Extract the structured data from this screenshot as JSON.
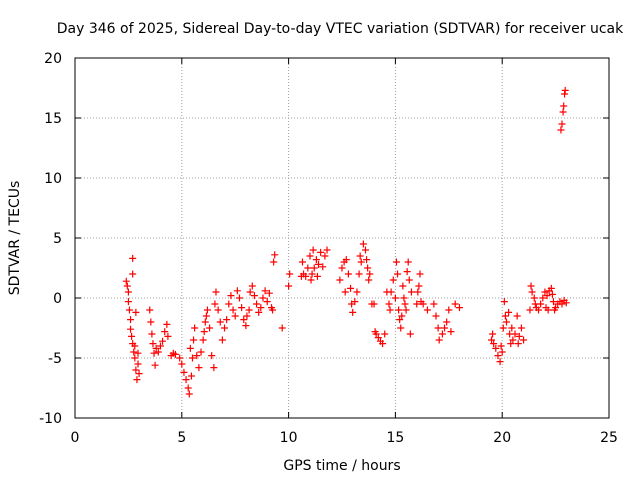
{
  "chart_data": {
    "type": "scatter",
    "title": "Day 346 of 2025, Sidereal Day-to-day VTEC variation (SDTVAR) for receiver ucak",
    "xlabel": "GPS time / hours",
    "ylabel": "SDTVAR / TECUs",
    "xlim": [
      0,
      25
    ],
    "ylim": [
      -10,
      20
    ],
    "xticks": [
      0,
      5,
      10,
      15,
      20,
      25
    ],
    "yticks": [
      -10,
      -5,
      0,
      5,
      10,
      15,
      20
    ],
    "grid": true,
    "marker": "plus",
    "color": "#ff0000",
    "series": [
      {
        "name": "SDTVAR",
        "points": [
          [
            2.4,
            1.4
          ],
          [
            2.45,
            1.0
          ],
          [
            2.5,
            0.5
          ],
          [
            2.5,
            -0.3
          ],
          [
            2.55,
            -1.0
          ],
          [
            2.6,
            -1.8
          ],
          [
            2.6,
            -2.6
          ],
          [
            2.65,
            -3.2
          ],
          [
            2.7,
            2.0
          ],
          [
            2.7,
            3.3
          ],
          [
            2.7,
            -3.8
          ],
          [
            2.75,
            -4.5
          ],
          [
            2.8,
            -5.0
          ],
          [
            2.8,
            -4.0
          ],
          [
            2.85,
            -6.0
          ],
          [
            2.9,
            -6.8
          ],
          [
            2.95,
            -5.5
          ],
          [
            3.0,
            -6.3
          ],
          [
            2.85,
            -1.2
          ],
          [
            2.95,
            -4.6
          ],
          [
            3.5,
            -1.0
          ],
          [
            3.55,
            -2.0
          ],
          [
            3.6,
            -3.0
          ],
          [
            3.65,
            -3.8
          ],
          [
            3.7,
            -4.6
          ],
          [
            3.75,
            -5.6
          ],
          [
            3.8,
            -4.2
          ],
          [
            3.9,
            -4.5
          ],
          [
            4.0,
            -4.0
          ],
          [
            4.1,
            -3.6
          ],
          [
            4.2,
            -2.8
          ],
          [
            4.3,
            -2.2
          ],
          [
            4.35,
            -3.2
          ],
          [
            4.5,
            -4.8
          ],
          [
            4.6,
            -4.6
          ],
          [
            4.7,
            -4.7
          ],
          [
            4.9,
            -5.0
          ],
          [
            5.0,
            -5.5
          ],
          [
            5.1,
            -6.2
          ],
          [
            5.2,
            -6.8
          ],
          [
            5.3,
            -7.5
          ],
          [
            5.35,
            -8.0
          ],
          [
            5.45,
            -6.5
          ],
          [
            5.5,
            -5.0
          ],
          [
            5.55,
            -3.5
          ],
          [
            5.6,
            -2.5
          ],
          [
            5.4,
            -4.2
          ],
          [
            5.7,
            -4.8
          ],
          [
            5.8,
            -5.8
          ],
          [
            5.9,
            -4.5
          ],
          [
            6.0,
            -3.5
          ],
          [
            6.05,
            -2.8
          ],
          [
            6.1,
            -2.0
          ],
          [
            6.15,
            -1.5
          ],
          [
            6.2,
            -1.0
          ],
          [
            6.3,
            -2.5
          ],
          [
            6.4,
            -4.8
          ],
          [
            6.5,
            -5.8
          ],
          [
            6.55,
            -0.5
          ],
          [
            6.6,
            0.5
          ],
          [
            6.7,
            -1.0
          ],
          [
            6.8,
            -2.0
          ],
          [
            6.9,
            -3.5
          ],
          [
            7.0,
            -2.5
          ],
          [
            7.1,
            -1.8
          ],
          [
            7.2,
            -0.5
          ],
          [
            7.3,
            0.2
          ],
          [
            7.4,
            -1.0
          ],
          [
            7.5,
            -1.5
          ],
          [
            7.6,
            0.6
          ],
          [
            7.7,
            0.0
          ],
          [
            7.8,
            -0.8
          ],
          [
            7.9,
            -1.8
          ],
          [
            8.0,
            -2.3
          ],
          [
            8.05,
            -1.5
          ],
          [
            8.15,
            -1.0
          ],
          [
            8.2,
            0.5
          ],
          [
            8.3,
            1.0
          ],
          [
            8.4,
            0.2
          ],
          [
            8.5,
            -0.5
          ],
          [
            8.6,
            -1.2
          ],
          [
            8.7,
            -0.8
          ],
          [
            8.8,
            0.0
          ],
          [
            8.9,
            0.6
          ],
          [
            9.0,
            -0.3
          ],
          [
            9.1,
            0.4
          ],
          [
            9.2,
            -0.8
          ],
          [
            9.25,
            -1.0
          ],
          [
            9.3,
            3.0
          ],
          [
            9.35,
            3.6
          ],
          [
            9.7,
            -2.5
          ],
          [
            10.0,
            1.0
          ],
          [
            10.05,
            2.0
          ],
          [
            10.6,
            1.8
          ],
          [
            10.65,
            3.0
          ],
          [
            10.7,
            2.0
          ],
          [
            10.8,
            1.8
          ],
          [
            10.9,
            2.5
          ],
          [
            11.0,
            3.5
          ],
          [
            11.05,
            1.5
          ],
          [
            11.1,
            2.0
          ],
          [
            11.15,
            4.0
          ],
          [
            11.2,
            2.5
          ],
          [
            11.3,
            3.2
          ],
          [
            11.35,
            1.8
          ],
          [
            11.4,
            2.8
          ],
          [
            11.5,
            3.8
          ],
          [
            11.6,
            2.6
          ],
          [
            11.7,
            3.5
          ],
          [
            11.8,
            4.0
          ],
          [
            12.4,
            1.5
          ],
          [
            12.5,
            2.5
          ],
          [
            12.6,
            3.0
          ],
          [
            12.65,
            0.5
          ],
          [
            12.7,
            3.2
          ],
          [
            12.8,
            2.0
          ],
          [
            12.9,
            0.8
          ],
          [
            12.95,
            -0.5
          ],
          [
            13.0,
            -1.2
          ],
          [
            13.1,
            -0.3
          ],
          [
            13.2,
            0.5
          ],
          [
            13.3,
            2.0
          ],
          [
            13.35,
            3.5
          ],
          [
            13.4,
            3.0
          ],
          [
            13.5,
            4.5
          ],
          [
            13.6,
            4.0
          ],
          [
            13.65,
            3.2
          ],
          [
            13.7,
            2.5
          ],
          [
            13.75,
            1.5
          ],
          [
            13.8,
            2.0
          ],
          [
            13.9,
            -0.5
          ],
          [
            14.0,
            -0.5
          ],
          [
            14.05,
            -2.8
          ],
          [
            14.1,
            -3.0
          ],
          [
            14.2,
            -3.3
          ],
          [
            14.3,
            -3.6
          ],
          [
            14.4,
            -3.8
          ],
          [
            14.5,
            -3.0
          ],
          [
            14.6,
            0.5
          ],
          [
            14.7,
            -0.5
          ],
          [
            14.75,
            -1.0
          ],
          [
            14.8,
            0.5
          ],
          [
            14.9,
            1.5
          ],
          [
            15.0,
            0.0
          ],
          [
            15.05,
            3.0
          ],
          [
            15.1,
            2.0
          ],
          [
            15.15,
            -1.0
          ],
          [
            15.2,
            -1.8
          ],
          [
            15.25,
            -2.5
          ],
          [
            15.3,
            -1.5
          ],
          [
            15.35,
            1.0
          ],
          [
            15.4,
            0.0
          ],
          [
            15.45,
            -0.5
          ],
          [
            15.5,
            -1.0
          ],
          [
            15.55,
            2.2
          ],
          [
            15.6,
            3.0
          ],
          [
            15.65,
            1.5
          ],
          [
            15.7,
            -3.0
          ],
          [
            15.75,
            0.5
          ],
          [
            16.0,
            -0.5
          ],
          [
            16.05,
            0.5
          ],
          [
            16.1,
            1.0
          ],
          [
            16.15,
            2.0
          ],
          [
            16.2,
            -0.3
          ],
          [
            16.3,
            -0.5
          ],
          [
            16.5,
            -1.0
          ],
          [
            16.8,
            -0.5
          ],
          [
            16.9,
            -1.5
          ],
          [
            17.0,
            -2.5
          ],
          [
            17.05,
            -3.5
          ],
          [
            17.2,
            -3.0
          ],
          [
            17.3,
            -2.5
          ],
          [
            17.4,
            -2.0
          ],
          [
            17.5,
            -1.0
          ],
          [
            17.6,
            -2.8
          ],
          [
            17.8,
            -0.5
          ],
          [
            18.0,
            -0.8
          ],
          [
            19.5,
            -3.5
          ],
          [
            19.55,
            -3.0
          ],
          [
            19.6,
            -3.8
          ],
          [
            19.7,
            -4.2
          ],
          [
            19.8,
            -4.8
          ],
          [
            19.9,
            -5.3
          ],
          [
            19.95,
            -4.0
          ],
          [
            20.0,
            -4.5
          ],
          [
            20.05,
            -2.5
          ],
          [
            20.1,
            -0.3
          ],
          [
            20.15,
            -1.5
          ],
          [
            20.2,
            -2.0
          ],
          [
            20.3,
            -1.2
          ],
          [
            20.35,
            -3.0
          ],
          [
            20.4,
            -3.8
          ],
          [
            20.45,
            -2.5
          ],
          [
            20.5,
            -3.5
          ],
          [
            20.6,
            -3.0
          ],
          [
            20.7,
            -1.5
          ],
          [
            20.75,
            -3.8
          ],
          [
            20.8,
            -3.2
          ],
          [
            20.9,
            -2.5
          ],
          [
            21.0,
            -3.5
          ],
          [
            21.3,
            -1.0
          ],
          [
            21.35,
            1.0
          ],
          [
            21.4,
            0.5
          ],
          [
            21.5,
            0.0
          ],
          [
            21.55,
            -0.5
          ],
          [
            21.6,
            -0.8
          ],
          [
            21.7,
            -1.0
          ],
          [
            21.8,
            -0.5
          ],
          [
            21.9,
            0.0
          ],
          [
            22.0,
            0.5
          ],
          [
            22.05,
            -0.8
          ],
          [
            22.1,
            0.2
          ],
          [
            22.15,
            -1.0
          ],
          [
            22.2,
            0.6
          ],
          [
            22.3,
            0.8
          ],
          [
            22.35,
            0.3
          ],
          [
            22.4,
            -0.3
          ],
          [
            22.45,
            -1.0
          ],
          [
            22.5,
            -0.8
          ],
          [
            22.6,
            -0.5
          ],
          [
            22.7,
            -0.3
          ],
          [
            22.8,
            -0.5
          ],
          [
            22.9,
            -0.2
          ],
          [
            23.0,
            -0.4
          ],
          [
            22.75,
            14.0
          ],
          [
            22.8,
            14.5
          ],
          [
            22.85,
            15.5
          ],
          [
            22.88,
            16.0
          ],
          [
            22.92,
            17.0
          ],
          [
            22.95,
            17.3
          ]
        ]
      }
    ]
  }
}
